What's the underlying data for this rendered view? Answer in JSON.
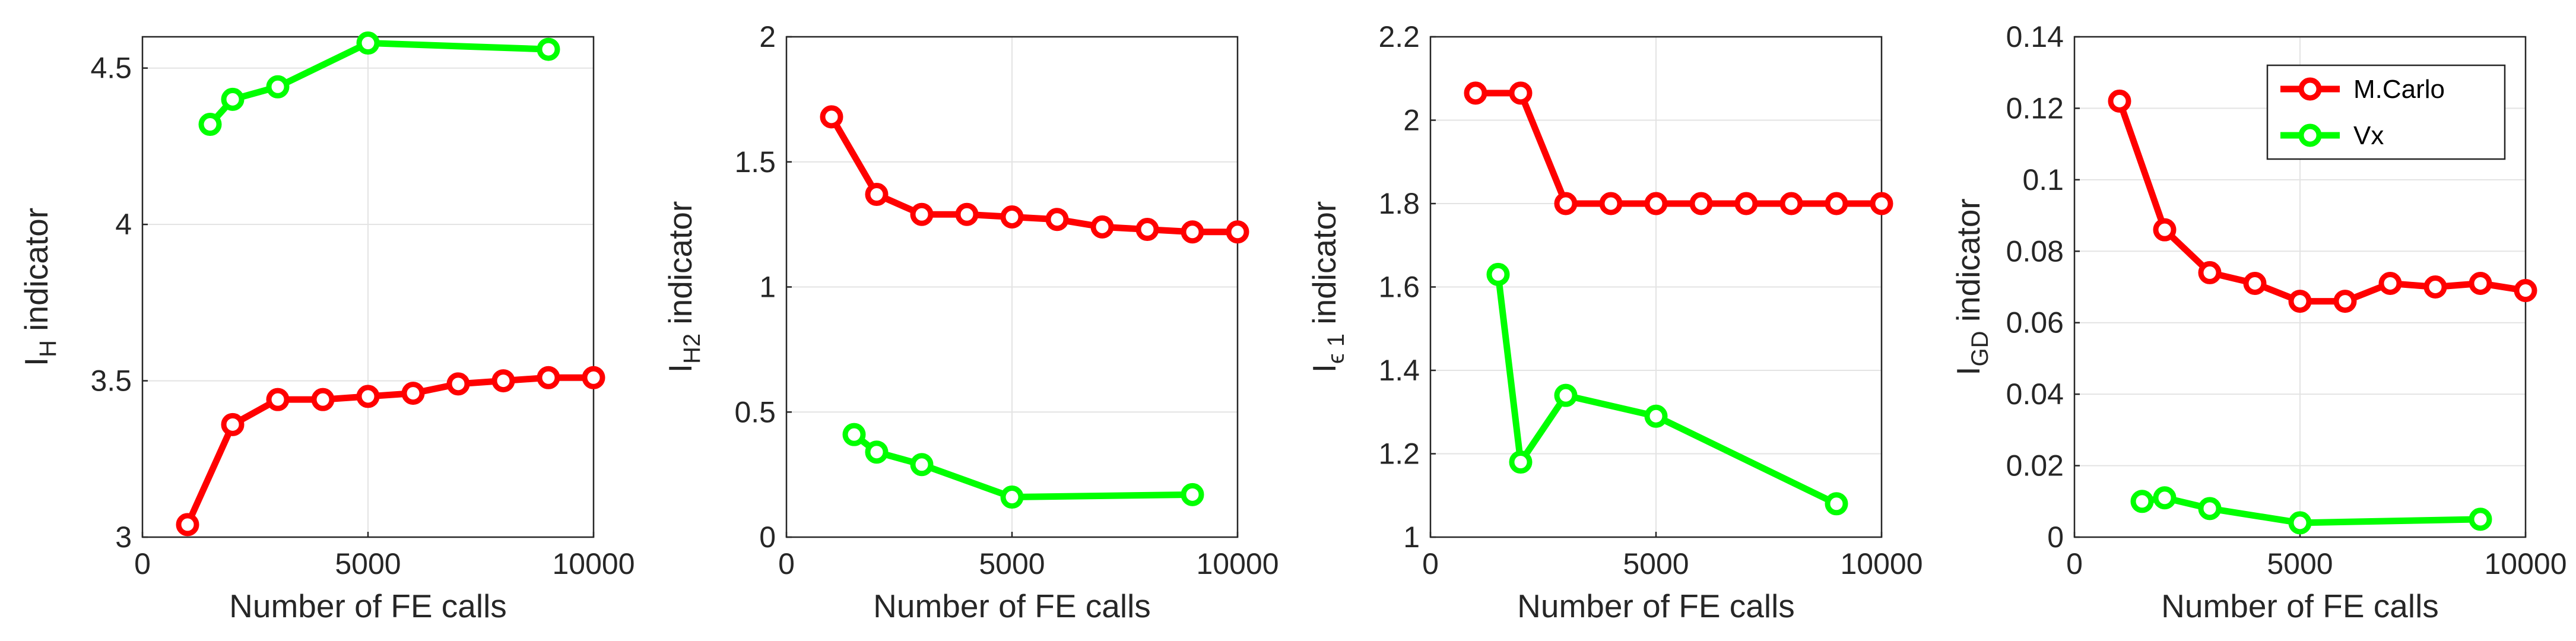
{
  "chart_data": [
    {
      "type": "line",
      "xlabel": "Number of FE calls",
      "ylabel": "I",
      "ylabel_sub": "H",
      "ylabel_tail": " indicator",
      "xlim": [
        0,
        10000
      ],
      "ylim": [
        3,
        4.6
      ],
      "xticks": [
        0,
        5000,
        10000
      ],
      "yticks": [
        3,
        3.5,
        4,
        4.5
      ],
      "ytick_labels": [
        "3",
        "3.5",
        "4",
        "4.5"
      ],
      "grid": true,
      "series": [
        {
          "color": "#ff0000",
          "x": [
            1000,
            2000,
            3000,
            4000,
            5000,
            6000,
            7000,
            8000,
            9000,
            10000
          ],
          "y": [
            3.04,
            3.36,
            3.44,
            3.44,
            3.45,
            3.46,
            3.49,
            3.5,
            3.51,
            3.51
          ]
        },
        {
          "color": "#00ff00",
          "x": [
            1500,
            2000,
            3000,
            5000,
            9000
          ],
          "y": [
            4.32,
            4.4,
            4.44,
            4.58,
            4.56
          ]
        }
      ]
    },
    {
      "type": "line",
      "xlabel": "Number of FE calls",
      "ylabel": "I",
      "ylabel_sub": "H2",
      "ylabel_tail": " indicator",
      "xlim": [
        0,
        10000
      ],
      "ylim": [
        0,
        2
      ],
      "xticks": [
        0,
        5000,
        10000
      ],
      "yticks": [
        0,
        0.5,
        1,
        1.5,
        2
      ],
      "ytick_labels": [
        "0",
        "0.5",
        "1",
        "1.5",
        "2"
      ],
      "grid": true,
      "series": [
        {
          "color": "#ff0000",
          "x": [
            1000,
            2000,
            3000,
            4000,
            5000,
            6000,
            7000,
            8000,
            9000,
            10000
          ],
          "y": [
            1.68,
            1.37,
            1.29,
            1.29,
            1.28,
            1.27,
            1.24,
            1.23,
            1.22,
            1.22
          ]
        },
        {
          "color": "#00ff00",
          "x": [
            1500,
            2000,
            3000,
            5000,
            9000
          ],
          "y": [
            0.41,
            0.34,
            0.29,
            0.16,
            0.17
          ]
        }
      ]
    },
    {
      "type": "line",
      "xlabel": "Number of FE calls",
      "ylabel": "I",
      "ylabel_sub": "ϵ 1",
      "ylabel_tail": " indicator",
      "xlim": [
        0,
        10000
      ],
      "ylim": [
        1,
        2.2
      ],
      "xticks": [
        0,
        5000,
        10000
      ],
      "yticks": [
        1,
        1.2,
        1.4,
        1.6,
        1.8,
        2,
        2.2
      ],
      "ytick_labels": [
        "1",
        "1.2",
        "1.4",
        "1.6",
        "1.8",
        "2",
        "2.2"
      ],
      "grid": true,
      "series": [
        {
          "color": "#ff0000",
          "x": [
            1000,
            2000,
            3000,
            4000,
            5000,
            6000,
            7000,
            8000,
            9000,
            10000
          ],
          "y": [
            2.065,
            2.065,
            1.8,
            1.8,
            1.8,
            1.8,
            1.8,
            1.8,
            1.8,
            1.8
          ]
        },
        {
          "color": "#00ff00",
          "x": [
            1500,
            2000,
            3000,
            5000,
            9000
          ],
          "y": [
            1.63,
            1.18,
            1.34,
            1.29,
            1.08
          ]
        }
      ]
    },
    {
      "type": "line",
      "xlabel": "Number of FE calls",
      "ylabel": "I",
      "ylabel_sub": "GD",
      "ylabel_tail": " indicator",
      "xlim": [
        0,
        10000
      ],
      "ylim": [
        0,
        0.14
      ],
      "xticks": [
        0,
        5000,
        10000
      ],
      "yticks": [
        0,
        0.02,
        0.04,
        0.06,
        0.08,
        0.1,
        0.12,
        0.14
      ],
      "ytick_labels": [
        "0",
        "0.02",
        "0.04",
        "0.06",
        "0.08",
        "0.1",
        "0.12",
        "0.14"
      ],
      "grid": true,
      "legend": {
        "position": "top-right",
        "entries": [
          "M.Carlo",
          "Vx"
        ]
      },
      "series": [
        {
          "name": "M.Carlo",
          "color": "#ff0000",
          "x": [
            1000,
            2000,
            3000,
            4000,
            5000,
            6000,
            7000,
            8000,
            9000,
            10000
          ],
          "y": [
            0.122,
            0.086,
            0.074,
            0.071,
            0.066,
            0.066,
            0.071,
            0.07,
            0.071,
            0.069
          ]
        },
        {
          "name": "Vx",
          "color": "#00ff00",
          "x": [
            1500,
            2000,
            3000,
            5000,
            9000
          ],
          "y": [
            0.01,
            0.011,
            0.008,
            0.004,
            0.005
          ]
        }
      ]
    }
  ]
}
